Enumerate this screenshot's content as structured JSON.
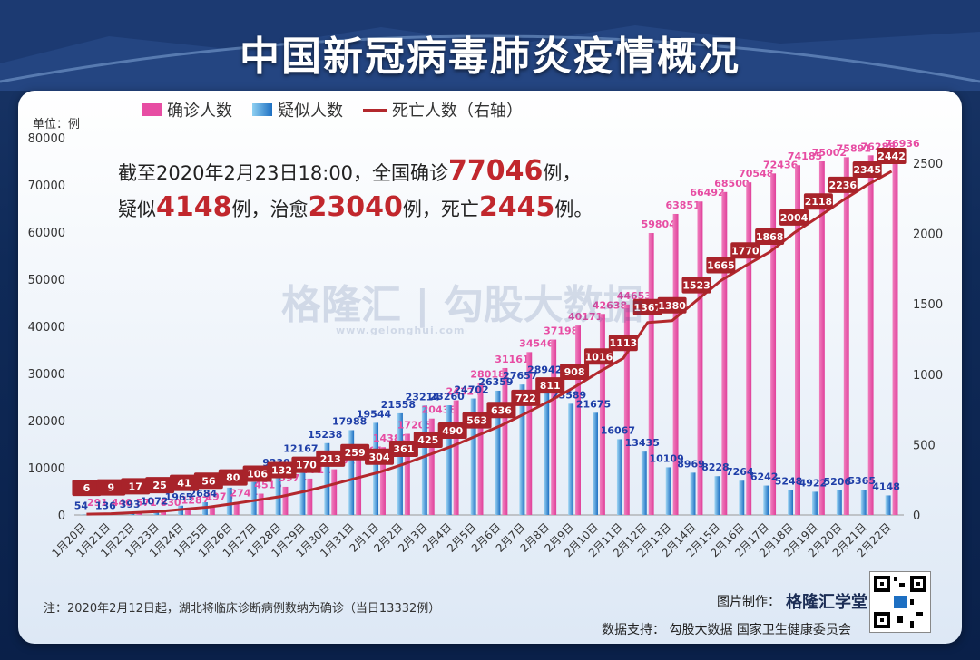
{
  "title": "中国新冠病毒肺炎疫情概况",
  "unit_label": "单位：例",
  "legend": {
    "confirmed": "确诊人数",
    "suspected": "疑似人数",
    "deaths": "死亡人数（右轴）"
  },
  "summary": {
    "line1_a": "截至2020年2月23日18:00，全国确诊",
    "confirmed": "77046",
    "line1_b": "例，",
    "line2_a": "疑似",
    "suspected": "4148",
    "line2_b": "例，治愈",
    "cured": "23040",
    "line2_c": "例，死亡",
    "deaths": "2445",
    "line2_d": "例。"
  },
  "note": "注：2020年2月12日起，湖北将临床诊断病例数纳为确诊（当日13332例）",
  "credit_label": "图片制作：",
  "credit_brand": "格隆汇学堂",
  "support": "数据支持：  勾股大数据  国家卫生健康委员会",
  "watermark": "格隆汇 | 勾股大数据",
  "watermark_sub": "www.gelonghui.com",
  "colors": {
    "confirmed": "#e74da3",
    "suspected": "#1d6fc2",
    "deaths": "#b3282d",
    "deaths_label": "#a8232a",
    "suspected_label": "#1f3fa8"
  },
  "chart_data": {
    "type": "bar",
    "categories": [
      "1月20日",
      "1月21日",
      "1月22日",
      "1月23日",
      "1月24日",
      "1月25日",
      "1月26日",
      "1月27日",
      "1月28日",
      "1月29日",
      "1月30日",
      "1月31日",
      "2月1日",
      "2月2日",
      "2月3日",
      "2月4日",
      "2月5日",
      "2月6日",
      "2月7日",
      "2月8日",
      "2月9日",
      "2月10日",
      "2月11日",
      "2月12日",
      "2月13日",
      "2月14日",
      "2月15日",
      "2月16日",
      "2月17日",
      "2月18日",
      "2月19日",
      "2月20日",
      "2月21日",
      "2月22日"
    ],
    "series": [
      {
        "name": "确诊人数",
        "axis": "left",
        "type": "bar",
        "values": [
          291,
          440,
          571,
          830,
          1287,
          1975,
          2744,
          4515,
          5974,
          7711,
          9692,
          11791,
          14380,
          17205,
          20438,
          24324,
          28018,
          31161,
          34546,
          37198,
          40171,
          42638,
          44653,
          59804,
          63851,
          66492,
          68500,
          70548,
          72436,
          74185,
          75002,
          75891,
          76288,
          76936
        ]
      },
      {
        "name": "疑似人数",
        "axis": "left",
        "type": "bar",
        "values": [
          54,
          136,
          393,
          1072,
          1965,
          2684,
          5794,
          6973,
          9239,
          12167,
          15238,
          17988,
          19544,
          21558,
          23214,
          23260,
          24702,
          26359,
          27657,
          28942,
          23589,
          21675,
          16067,
          13435,
          10109,
          8969,
          8228,
          7264,
          6242,
          5248,
          4922,
          5206,
          5365,
          4148
        ]
      },
      {
        "name": "死亡人数（右轴）",
        "axis": "right",
        "type": "line",
        "values": [
          6,
          9,
          17,
          25,
          41,
          56,
          80,
          106,
          132,
          170,
          213,
          259,
          304,
          361,
          425,
          490,
          563,
          636,
          722,
          811,
          908,
          1016,
          1113,
          1367,
          1380,
          1523,
          1665,
          1770,
          1868,
          2004,
          2118,
          2236,
          2345,
          2442
        ]
      }
    ],
    "left_axis": {
      "ylim": [
        0,
        80000
      ],
      "ticks": [
        0,
        10000,
        20000,
        30000,
        40000,
        50000,
        60000,
        70000,
        80000
      ]
    },
    "right_axis": {
      "ylim": [
        0,
        2680
      ],
      "ticks": [
        0,
        500,
        1000,
        1500,
        2000,
        2500
      ]
    },
    "grid": false,
    "legend_position": "top-left"
  }
}
